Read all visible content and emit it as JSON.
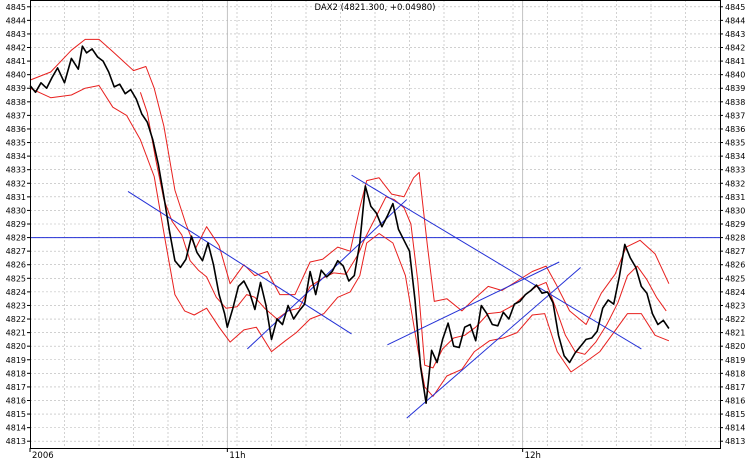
{
  "chart_data": {
    "type": "line",
    "title": "DAX2 (4821.300, +0.04980)",
    "ylim": [
      4812.5,
      4845.5
    ],
    "y_ticks": [
      4813,
      4814,
      4815,
      4816,
      4817,
      4818,
      4819,
      4820,
      4821,
      4822,
      4823,
      4824,
      4825,
      4826,
      4827,
      4828,
      4829,
      4830,
      4831,
      4832,
      4833,
      4834,
      4835,
      4836,
      4837,
      4838,
      4839,
      4840,
      4841,
      4842,
      4843,
      4844,
      4845
    ],
    "xlim": [
      0,
      100
    ],
    "x_tick_labels": [
      {
        "label": "2006",
        "x": 0
      },
      {
        "label": "11h",
        "x": 28.6
      },
      {
        "label": "12h",
        "x": 71.4
      }
    ],
    "grid": true,
    "colors": {
      "price": "#000000",
      "bands": "#e8201e",
      "trendlines": "#2431d6",
      "grid": "#b4b4b4",
      "frame": "#000000"
    },
    "series": [
      {
        "role": "price",
        "points": [
          [
            0,
            4839.2
          ],
          [
            0.8,
            4838.7
          ],
          [
            1.6,
            4839.4
          ],
          [
            2.4,
            4839.0
          ],
          [
            3.2,
            4839.8
          ],
          [
            4.0,
            4840.5
          ],
          [
            5.0,
            4839.4
          ],
          [
            6.0,
            4841.2
          ],
          [
            7.0,
            4840.4
          ],
          [
            7.6,
            4842.1
          ],
          [
            8.2,
            4841.6
          ],
          [
            9.0,
            4841.9
          ],
          [
            9.8,
            4841.3
          ],
          [
            10.6,
            4841.0
          ],
          [
            11.4,
            4840.2
          ],
          [
            12.2,
            4839.1
          ],
          [
            13.0,
            4839.3
          ],
          [
            13.8,
            4838.6
          ],
          [
            14.6,
            4838.9
          ],
          [
            15.4,
            4838.2
          ],
          [
            16.2,
            4837.1
          ],
          [
            17.0,
            4836.5
          ],
          [
            17.8,
            4835.2
          ],
          [
            18.6,
            4833.4
          ],
          [
            19.4,
            4831.0
          ],
          [
            20.2,
            4828.5
          ],
          [
            21.0,
            4826.3
          ],
          [
            21.8,
            4825.8
          ],
          [
            22.6,
            4826.4
          ],
          [
            23.4,
            4828.1
          ],
          [
            24.2,
            4826.9
          ],
          [
            25.0,
            4826.3
          ],
          [
            25.8,
            4827.6
          ],
          [
            26.6,
            4826.0
          ],
          [
            27.4,
            4823.8
          ],
          [
            28.2,
            4822.4
          ],
          [
            28.6,
            4821.4
          ],
          [
            29.4,
            4822.8
          ],
          [
            30.2,
            4824.4
          ],
          [
            31.0,
            4824.8
          ],
          [
            31.8,
            4824.0
          ],
          [
            32.6,
            4822.7
          ],
          [
            33.4,
            4824.7
          ],
          [
            34.2,
            4823.0
          ],
          [
            35.0,
            4820.5
          ],
          [
            35.8,
            4822.0
          ],
          [
            36.6,
            4821.6
          ],
          [
            37.4,
            4823.0
          ],
          [
            38.2,
            4822.0
          ],
          [
            39.0,
            4822.6
          ],
          [
            39.8,
            4823.1
          ],
          [
            40.6,
            4825.5
          ],
          [
            41.4,
            4823.8
          ],
          [
            42.2,
            4825.6
          ],
          [
            43.0,
            4825.1
          ],
          [
            43.8,
            4825.5
          ],
          [
            44.6,
            4826.3
          ],
          [
            45.4,
            4825.9
          ],
          [
            46.2,
            4824.8
          ],
          [
            47.0,
            4825.2
          ],
          [
            47.8,
            4827.6
          ],
          [
            48.6,
            4831.8
          ],
          [
            49.4,
            4830.3
          ],
          [
            50.2,
            4829.8
          ],
          [
            51.0,
            4828.8
          ],
          [
            51.8,
            4829.6
          ],
          [
            52.6,
            4830.5
          ],
          [
            53.4,
            4828.6
          ],
          [
            54.2,
            4827.8
          ],
          [
            55.0,
            4827.0
          ],
          [
            55.8,
            4823.4
          ],
          [
            56.6,
            4818.5
          ],
          [
            57.4,
            4815.8
          ],
          [
            58.2,
            4819.7
          ],
          [
            59.0,
            4818.8
          ],
          [
            59.8,
            4820.5
          ],
          [
            60.6,
            4821.7
          ],
          [
            61.4,
            4820.0
          ],
          [
            62.2,
            4819.9
          ],
          [
            63.0,
            4821.4
          ],
          [
            63.8,
            4821.6
          ],
          [
            64.6,
            4820.4
          ],
          [
            65.4,
            4823.0
          ],
          [
            66.2,
            4822.4
          ],
          [
            67.0,
            4821.6
          ],
          [
            67.8,
            4821.5
          ],
          [
            68.6,
            4822.5
          ],
          [
            69.4,
            4822.0
          ],
          [
            70.2,
            4823.1
          ],
          [
            71.0,
            4823.3
          ],
          [
            71.8,
            4823.8
          ],
          [
            72.6,
            4824.1
          ],
          [
            73.4,
            4824.5
          ],
          [
            74.2,
            4823.9
          ],
          [
            75.0,
            4824.0
          ],
          [
            75.8,
            4823.2
          ],
          [
            76.6,
            4820.8
          ],
          [
            77.4,
            4819.3
          ],
          [
            78.2,
            4818.8
          ],
          [
            79.0,
            4819.5
          ],
          [
            79.8,
            4820.0
          ],
          [
            80.6,
            4820.5
          ],
          [
            81.4,
            4820.6
          ],
          [
            82.2,
            4821.1
          ],
          [
            83.0,
            4822.8
          ],
          [
            83.8,
            4823.4
          ],
          [
            84.6,
            4823.1
          ],
          [
            85.4,
            4825.1
          ],
          [
            86.2,
            4827.5
          ],
          [
            87.0,
            4826.5
          ],
          [
            87.8,
            4825.8
          ],
          [
            88.6,
            4824.4
          ],
          [
            89.4,
            4823.9
          ],
          [
            90.2,
            4822.4
          ],
          [
            91.0,
            4821.6
          ],
          [
            91.8,
            4821.9
          ],
          [
            92.6,
            4821.3
          ]
        ]
      },
      {
        "role": "upper-band",
        "points": [
          [
            0,
            4839.6
          ],
          [
            3,
            4840.2
          ],
          [
            6,
            4841.8
          ],
          [
            8,
            4842.6
          ],
          [
            10,
            4842.6
          ],
          [
            12,
            4841.7
          ],
          [
            15,
            4840.3
          ],
          [
            16.8,
            4840.6
          ],
          [
            18,
            4839.0
          ],
          [
            19.4,
            4836.2
          ],
          [
            21,
            4831.5
          ],
          [
            22.6,
            4829.0
          ],
          [
            24,
            4827.2
          ],
          [
            25.6,
            4828.8
          ],
          [
            27.4,
            4827.4
          ],
          [
            29,
            4824.6
          ],
          [
            31,
            4826.0
          ],
          [
            32.6,
            4825.2
          ],
          [
            34.4,
            4825.5
          ],
          [
            36.2,
            4823.8
          ],
          [
            38.4,
            4823.8
          ],
          [
            40.6,
            4826.2
          ],
          [
            42.4,
            4826.4
          ],
          [
            44.6,
            4827.3
          ],
          [
            46.4,
            4827.0
          ],
          [
            47.8,
            4830.2
          ],
          [
            48.8,
            4832.2
          ],
          [
            50.6,
            4832.4
          ],
          [
            52.4,
            4831.2
          ],
          [
            54.2,
            4831.0
          ],
          [
            55.6,
            4832.4
          ],
          [
            56.4,
            4832.8
          ],
          [
            57.6,
            4827.4
          ],
          [
            58.6,
            4823.3
          ],
          [
            60.4,
            4823.5
          ],
          [
            62.6,
            4822.6
          ],
          [
            64.4,
            4823.5
          ],
          [
            66.4,
            4824.4
          ],
          [
            68.4,
            4824.1
          ],
          [
            70.6,
            4824.8
          ],
          [
            72.8,
            4825.5
          ],
          [
            74.8,
            4825.9
          ],
          [
            76.2,
            4824.6
          ],
          [
            78.2,
            4822.6
          ],
          [
            80.6,
            4821.6
          ],
          [
            82.8,
            4823.9
          ],
          [
            84.8,
            4825.3
          ],
          [
            86.4,
            4827.3
          ],
          [
            88.4,
            4827.8
          ],
          [
            90.6,
            4826.8
          ],
          [
            92.6,
            4824.6
          ]
        ]
      },
      {
        "role": "lower-band",
        "points": [
          [
            0,
            4839.0
          ],
          [
            3,
            4838.3
          ],
          [
            6,
            4838.5
          ],
          [
            8,
            4839.0
          ],
          [
            10,
            4839.2
          ],
          [
            12,
            4837.6
          ],
          [
            14,
            4837.0
          ],
          [
            16,
            4835.2
          ],
          [
            18,
            4832.5
          ],
          [
            19.6,
            4827.8
          ],
          [
            21,
            4823.8
          ],
          [
            22.4,
            4822.6
          ],
          [
            23.8,
            4822.3
          ],
          [
            25.6,
            4822.8
          ],
          [
            27.4,
            4821.4
          ],
          [
            29,
            4820.3
          ],
          [
            31,
            4821.2
          ],
          [
            32.8,
            4821.4
          ],
          [
            35,
            4819.6
          ],
          [
            37,
            4820.4
          ],
          [
            38.6,
            4821.0
          ],
          [
            40.6,
            4822.0
          ],
          [
            42.6,
            4822.4
          ],
          [
            44.6,
            4823.6
          ],
          [
            46.4,
            4824.0
          ],
          [
            47.8,
            4825.2
          ],
          [
            48.8,
            4827.6
          ],
          [
            50.6,
            4828.3
          ],
          [
            52.6,
            4827.6
          ],
          [
            54.4,
            4825.2
          ],
          [
            56.2,
            4819.8
          ],
          [
            57.2,
            4817.0
          ],
          [
            58.4,
            4816.3
          ],
          [
            60.4,
            4817.8
          ],
          [
            62.6,
            4818.3
          ],
          [
            64.4,
            4819.6
          ],
          [
            66.6,
            4820.4
          ],
          [
            68.6,
            4820.6
          ],
          [
            70.6,
            4821.0
          ],
          [
            72.8,
            4822.3
          ],
          [
            74.6,
            4822.4
          ],
          [
            76.4,
            4819.6
          ],
          [
            78.4,
            4818.1
          ],
          [
            80.4,
            4818.8
          ],
          [
            82.6,
            4819.6
          ],
          [
            84.6,
            4821.0
          ],
          [
            86.6,
            4822.4
          ],
          [
            88.6,
            4822.4
          ],
          [
            90.6,
            4820.8
          ],
          [
            92.6,
            4820.4
          ]
        ]
      },
      {
        "role": "upper-band-2",
        "points": [
          [
            16,
            4838.7
          ],
          [
            17,
            4837.2
          ],
          [
            18.2,
            4833.8
          ],
          [
            19.4,
            4830.8
          ],
          [
            20.6,
            4829.2
          ],
          [
            22,
            4828.2
          ],
          [
            23.2,
            4826.3
          ],
          [
            24.4,
            4825.6
          ],
          [
            25.6,
            4825.1
          ],
          [
            27,
            4823.6
          ],
          [
            28.4,
            4822.8
          ],
          [
            30,
            4822.9
          ],
          [
            31.4,
            4823.8
          ],
          [
            32.6,
            4823.6
          ],
          [
            34,
            4822.8
          ],
          [
            35.8,
            4822.0
          ],
          [
            37.4,
            4822.6
          ],
          [
            39,
            4822.8
          ],
          [
            40.6,
            4824.4
          ],
          [
            42.4,
            4825.0
          ],
          [
            44,
            4825.4
          ],
          [
            45.8,
            4825.3
          ],
          [
            47.6,
            4826.8
          ],
          [
            48.6,
            4828.0
          ],
          [
            50.2,
            4829.6
          ],
          [
            51.6,
            4831.0
          ],
          [
            52.8,
            4830.8
          ],
          [
            54.2,
            4830.2
          ],
          [
            55.2,
            4829.0
          ],
          [
            56.2,
            4824.8
          ],
          [
            57.2,
            4818.6
          ],
          [
            58.4,
            4818.4
          ],
          [
            59.8,
            4819.8
          ],
          [
            61.4,
            4820.6
          ],
          [
            63,
            4820.8
          ],
          [
            64.6,
            4821.4
          ],
          [
            66.4,
            4822.4
          ],
          [
            68.2,
            4822.5
          ],
          [
            70,
            4823.0
          ],
          [
            71.8,
            4823.8
          ],
          [
            73.4,
            4824.4
          ],
          [
            74.8,
            4824.7
          ],
          [
            76.2,
            4822.8
          ],
          [
            77.6,
            4820.8
          ],
          [
            79,
            4819.6
          ],
          [
            80.4,
            4819.4
          ],
          [
            82,
            4820.3
          ],
          [
            83.6,
            4821.6
          ],
          [
            85.2,
            4823.2
          ],
          [
            86.6,
            4825.2
          ],
          [
            88,
            4825.9
          ],
          [
            89.4,
            4824.9
          ],
          [
            90.8,
            4823.6
          ],
          [
            92.2,
            4822.6
          ]
        ]
      }
    ],
    "horizontal_line": {
      "y": 4828
    },
    "trendlines": [
      {
        "x1": 14.2,
        "y1": 4831.4,
        "x2": 46.6,
        "y2": 4820.9
      },
      {
        "x1": 31.5,
        "y1": 4819.8,
        "x2": 54.6,
        "y2": 4830.8
      },
      {
        "x1": 46.6,
        "y1": 4832.6,
        "x2": 88.6,
        "y2": 4819.8
      },
      {
        "x1": 51.8,
        "y1": 4820.1,
        "x2": 76.7,
        "y2": 4826.2
      },
      {
        "x1": 54.6,
        "y1": 4814.7,
        "x2": 79.8,
        "y2": 4825.8
      }
    ]
  }
}
